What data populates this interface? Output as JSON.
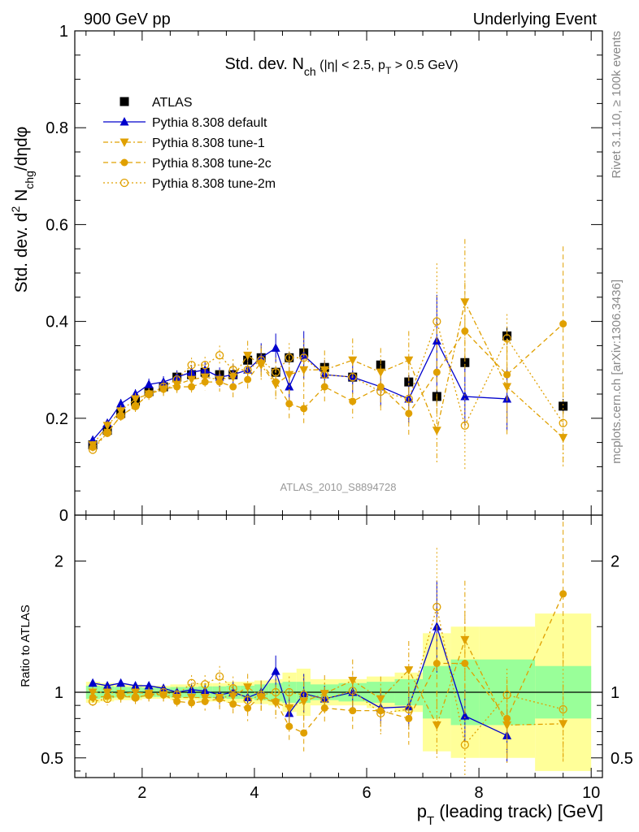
{
  "header": {
    "left_label": "900 GeV pp",
    "right_label": "Underlying Event",
    "plot_title_main": "Std. dev. N",
    "plot_title_sub": "ch",
    "plot_title_rest": " (|η| < 2.5, p",
    "plot_title_sub2": "T",
    "plot_title_end": " > 0.5 GeV)"
  },
  "side_labels": {
    "rivet": "Rivet 3.1.10, ≥ 100k events",
    "mcplots": "mcplots.cern.ch [arXiv:1306.3436]"
  },
  "analysis_id": "ATLAS_2010_S8894728",
  "colors": {
    "atlas": "#000000",
    "default": "#0000cc",
    "tune": "#e0a000",
    "band_yellow": "#ffff99",
    "band_green": "#99ff99"
  },
  "legend": [
    {
      "key": "atlas",
      "label": "ATLAS"
    },
    {
      "key": "default",
      "label": "Pythia 8.308 default"
    },
    {
      "key": "tune1",
      "label": "Pythia 8.308 tune-1"
    },
    {
      "key": "tune2c",
      "label": "Pythia 8.308 tune-2c"
    },
    {
      "key": "tune2m",
      "label": "Pythia 8.308 tune-2m"
    }
  ],
  "chart_data": [
    {
      "type": "scatter",
      "panel": "main",
      "ylabel": "Std. dev. d² N_chg/dηdφ",
      "xlim": [
        0.8,
        10.2
      ],
      "ylim": [
        0,
        1
      ],
      "yticks": [
        0,
        0.2,
        0.4,
        0.6,
        0.8,
        1
      ],
      "ytick_labels": [
        "0",
        "0.2",
        "0.4",
        "0.6",
        "0.8",
        "1"
      ],
      "x": [
        1.12,
        1.38,
        1.62,
        1.88,
        2.12,
        2.38,
        2.62,
        2.88,
        3.12,
        3.38,
        3.62,
        3.88,
        4.12,
        4.38,
        4.62,
        4.88,
        5.25,
        5.75,
        6.25,
        6.75,
        7.25,
        7.75,
        8.5,
        9.5
      ],
      "series": [
        {
          "name": "ATLAS",
          "key": "atlas",
          "values": [
            0.145,
            0.175,
            0.21,
            0.235,
            0.255,
            0.265,
            0.285,
            0.29,
            0.295,
            0.29,
            0.29,
            0.32,
            0.325,
            0.295,
            0.325,
            0.335,
            0.305,
            0.285,
            0.31,
            0.275,
            0.245,
            0.315,
            0.37,
            0.225
          ],
          "errors": [
            0.004,
            0.004,
            0.004,
            0.005,
            0.005,
            0.005,
            0.006,
            0.006,
            0.007,
            0.007,
            0.008,
            0.009,
            0.01,
            0.01,
            0.011,
            0.012,
            0.01,
            0.012,
            0.012,
            0.014,
            0.015,
            0.014,
            0.018,
            0.015
          ]
        },
        {
          "name": "Pythia 8.308 default",
          "key": "default",
          "values": [
            0.155,
            0.19,
            0.23,
            0.25,
            0.27,
            0.275,
            0.285,
            0.295,
            0.3,
            0.285,
            0.29,
            0.3,
            0.325,
            0.345,
            0.265,
            0.33,
            0.29,
            0.285,
            0.265,
            0.24,
            0.36,
            0.245,
            0.24,
            null
          ],
          "errors": [
            0.008,
            0.008,
            0.01,
            0.01,
            0.012,
            0.012,
            0.014,
            0.015,
            0.017,
            0.02,
            0.022,
            0.025,
            0.03,
            0.03,
            0.035,
            0.05,
            0.03,
            0.035,
            0.04,
            0.05,
            0.095,
            0.06,
            0.065,
            null
          ]
        },
        {
          "name": "Pythia 8.308 tune-1",
          "key": "tune1",
          "values": [
            0.145,
            0.185,
            0.215,
            0.24,
            0.25,
            0.26,
            0.27,
            0.28,
            0.285,
            0.28,
            0.285,
            0.33,
            0.31,
            0.27,
            0.29,
            0.3,
            0.3,
            0.32,
            0.295,
            0.32,
            0.175,
            0.44,
            0.265,
            0.16
          ],
          "errors": [
            0.008,
            0.01,
            0.012,
            0.012,
            0.012,
            0.014,
            0.015,
            0.016,
            0.018,
            0.02,
            0.025,
            0.03,
            0.035,
            0.035,
            0.04,
            0.045,
            0.04,
            0.045,
            0.05,
            0.06,
            0.07,
            0.13,
            0.1,
            0.055
          ]
        },
        {
          "name": "Pythia 8.308 tune-2c",
          "key": "tune2c",
          "values": [
            0.14,
            0.17,
            0.205,
            0.225,
            0.25,
            0.26,
            0.265,
            0.265,
            0.275,
            0.275,
            0.265,
            0.28,
            0.315,
            0.275,
            0.23,
            0.22,
            0.265,
            0.235,
            0.265,
            0.21,
            0.295,
            0.38,
            0.29,
            0.395
          ],
          "errors": [
            0.008,
            0.009,
            0.01,
            0.012,
            0.012,
            0.013,
            0.014,
            0.015,
            0.017,
            0.02,
            0.022,
            0.025,
            0.03,
            0.03,
            0.03,
            0.03,
            0.03,
            0.035,
            0.045,
            0.05,
            0.09,
            0.1,
            0.09,
            0.16
          ]
        },
        {
          "name": "Pythia 8.308 tune-2m",
          "key": "tune2m",
          "values": [
            0.135,
            0.17,
            0.205,
            0.225,
            0.25,
            0.265,
            0.28,
            0.31,
            0.31,
            0.33,
            0.3,
            0.3,
            0.32,
            0.295,
            0.325,
            0.325,
            0.29,
            0.285,
            0.255,
            0.24,
            0.4,
            0.185,
            0.365,
            0.19
          ],
          "errors": [
            0.008,
            0.009,
            0.01,
            0.012,
            0.012,
            0.013,
            0.014,
            0.015,
            0.017,
            0.02,
            0.022,
            0.025,
            0.03,
            0.03,
            0.03,
            0.04,
            0.03,
            0.035,
            0.04,
            0.05,
            0.12,
            0.09,
            0.05,
            0.09
          ]
        }
      ]
    },
    {
      "type": "scatter",
      "panel": "ratio",
      "ylabel": "Ratio to ATLAS",
      "xlabel_main": "p",
      "xlabel_sub": "T",
      "xlabel_rest": " (leading track) [GeV]",
      "xlim": [
        0.8,
        10.2
      ],
      "ylim": [
        0.35,
        2.35
      ],
      "xticks": [
        2,
        4,
        6,
        8,
        10
      ],
      "xtick_labels": [
        "2",
        "4",
        "6",
        "8",
        "10"
      ],
      "yticks": [
        0.5,
        1,
        2
      ],
      "ytick_labels": [
        "0.5",
        "1",
        "2"
      ],
      "bins": [
        [
          1.0,
          1.25
        ],
        [
          1.25,
          1.5
        ],
        [
          1.5,
          1.75
        ],
        [
          1.75,
          2.0
        ],
        [
          2.0,
          2.25
        ],
        [
          2.25,
          2.5
        ],
        [
          2.5,
          2.75
        ],
        [
          2.75,
          3.0
        ],
        [
          3.0,
          3.25
        ],
        [
          3.25,
          3.5
        ],
        [
          3.5,
          3.75
        ],
        [
          3.75,
          4.0
        ],
        [
          4.0,
          4.25
        ],
        [
          4.25,
          4.5
        ],
        [
          4.5,
          4.75
        ],
        [
          4.75,
          5.0
        ],
        [
          5.0,
          5.5
        ],
        [
          5.5,
          6.0
        ],
        [
          6.0,
          6.5
        ],
        [
          6.5,
          7.0
        ],
        [
          7.0,
          7.5
        ],
        [
          7.5,
          8.0
        ],
        [
          8.0,
          9.0
        ],
        [
          9.0,
          10.0
        ]
      ],
      "band_yellow": [
        0.08,
        0.07,
        0.06,
        0.06,
        0.05,
        0.05,
        0.06,
        0.06,
        0.07,
        0.07,
        0.08,
        0.08,
        0.09,
        0.1,
        0.15,
        0.18,
        0.1,
        0.1,
        0.12,
        0.15,
        0.45,
        0.5,
        0.5,
        0.6
      ],
      "band_green": [
        0.05,
        0.045,
        0.04,
        0.04,
        0.035,
        0.035,
        0.04,
        0.04,
        0.045,
        0.045,
        0.05,
        0.05,
        0.06,
        0.07,
        0.08,
        0.08,
        0.06,
        0.07,
        0.08,
        0.1,
        0.2,
        0.25,
        0.25,
        0.2
      ],
      "x": [
        1.12,
        1.38,
        1.62,
        1.88,
        2.12,
        2.38,
        2.62,
        2.88,
        3.12,
        3.38,
        3.62,
        3.88,
        4.12,
        4.38,
        4.62,
        4.88,
        5.25,
        5.75,
        6.25,
        6.75,
        7.25,
        7.75,
        8.5,
        9.5
      ],
      "series": [
        {
          "name": "Pythia 8.308 default",
          "key": "default",
          "values": [
            1.07,
            1.05,
            1.07,
            1.05,
            1.05,
            1.03,
            1.0,
            1.02,
            1.01,
            0.98,
            1.0,
            0.96,
            1.0,
            1.16,
            0.84,
            0.99,
            0.95,
            1.0,
            0.88,
            0.89,
            1.5,
            0.82,
            0.67,
            null
          ],
          "errors": [
            0.03,
            0.03,
            0.03,
            0.03,
            0.03,
            0.03,
            0.04,
            0.05,
            0.06,
            0.07,
            0.08,
            0.08,
            0.09,
            0.12,
            0.12,
            0.15,
            0.1,
            0.12,
            0.12,
            0.15,
            0.35,
            0.2,
            0.2,
            null
          ]
        },
        {
          "name": "Pythia 8.308 tune-1",
          "key": "tune1",
          "values": [
            1.0,
            1.0,
            0.99,
            1.0,
            0.99,
            0.98,
            0.96,
            0.96,
            0.96,
            0.96,
            0.97,
            1.04,
            0.96,
            0.92,
            0.88,
            0.93,
            0.99,
            1.09,
            0.95,
            1.17,
            0.75,
            1.4,
            0.75,
            0.76
          ],
          "errors": [
            0.04,
            0.05,
            0.05,
            0.05,
            0.05,
            0.05,
            0.06,
            0.06,
            0.07,
            0.08,
            0.09,
            0.1,
            0.11,
            0.12,
            0.13,
            0.15,
            0.14,
            0.16,
            0.17,
            0.22,
            0.25,
            0.45,
            0.3,
            0.3
          ]
        },
        {
          "name": "Pythia 8.308 tune-2c",
          "key": "tune2c",
          "values": [
            0.96,
            0.97,
            0.97,
            0.96,
            0.98,
            0.98,
            0.93,
            0.92,
            0.93,
            0.95,
            0.91,
            0.88,
            0.97,
            0.93,
            0.74,
            0.69,
            0.88,
            0.86,
            0.86,
            0.8,
            1.22,
            1.22,
            0.8,
            1.75
          ],
          "errors": [
            0.04,
            0.05,
            0.05,
            0.05,
            0.05,
            0.05,
            0.06,
            0.06,
            0.07,
            0.08,
            0.09,
            0.1,
            0.11,
            0.12,
            0.12,
            0.14,
            0.12,
            0.14,
            0.16,
            0.2,
            0.35,
            0.4,
            0.3,
            0.55
          ]
        },
        {
          "name": "Pythia 8.308 tune-2m",
          "key": "tune2m",
          "values": [
            0.93,
            0.95,
            0.98,
            0.96,
            0.98,
            1.0,
            0.98,
            1.07,
            1.06,
            1.12,
            1.03,
            0.94,
            0.98,
            1.0,
            1.0,
            0.98,
            0.95,
            1.01,
            0.84,
            0.87,
            1.65,
            0.6,
            0.98,
            0.87
          ],
          "errors": [
            0.04,
            0.05,
            0.05,
            0.05,
            0.05,
            0.05,
            0.06,
            0.06,
            0.07,
            0.08,
            0.09,
            0.1,
            0.11,
            0.12,
            0.12,
            0.14,
            0.12,
            0.14,
            0.16,
            0.2,
            0.45,
            0.4,
            0.2,
            0.4
          ]
        }
      ]
    }
  ]
}
